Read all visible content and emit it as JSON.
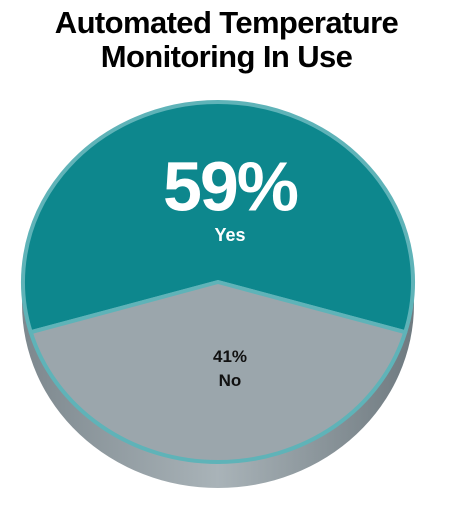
{
  "chart_data": {
    "type": "pie",
    "title": "Automated Temperature Monitoring In Use",
    "categories": [
      "Yes",
      "No"
    ],
    "values": [
      59,
      41
    ],
    "value_labels": [
      "59%",
      "41%"
    ],
    "colors": [
      "#0d878d",
      "#9ba6ac"
    ]
  }
}
